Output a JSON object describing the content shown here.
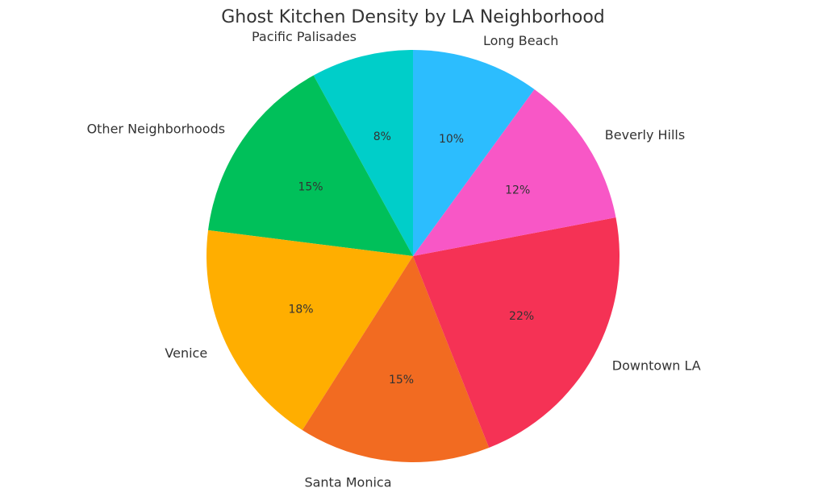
{
  "chart_data": {
    "type": "pie",
    "title": "Ghost Kitchen Density by LA Neighborhood",
    "start_angle_deg": 90,
    "direction": "counterclockwise",
    "slices": [
      {
        "label": "Pacific Palisades",
        "value": 8,
        "pct_label": "8%",
        "color": "#00CEC9"
      },
      {
        "label": "Other Neighborhoods",
        "value": 15,
        "pct_label": "15%",
        "color": "#00C05A"
      },
      {
        "label": "Venice",
        "value": 18,
        "pct_label": "18%",
        "color": "#FFAE00"
      },
      {
        "label": "Santa Monica",
        "value": 15,
        "pct_label": "15%",
        "color": "#F26B21"
      },
      {
        "label": "Downtown LA",
        "value": 22,
        "pct_label": "22%",
        "color": "#F53255"
      },
      {
        "label": "Beverly Hills",
        "value": 12,
        "pct_label": "12%",
        "color": "#F857C6"
      },
      {
        "label": "Long Beach",
        "value": 10,
        "pct_label": "10%",
        "color": "#2CBDFE"
      }
    ]
  }
}
